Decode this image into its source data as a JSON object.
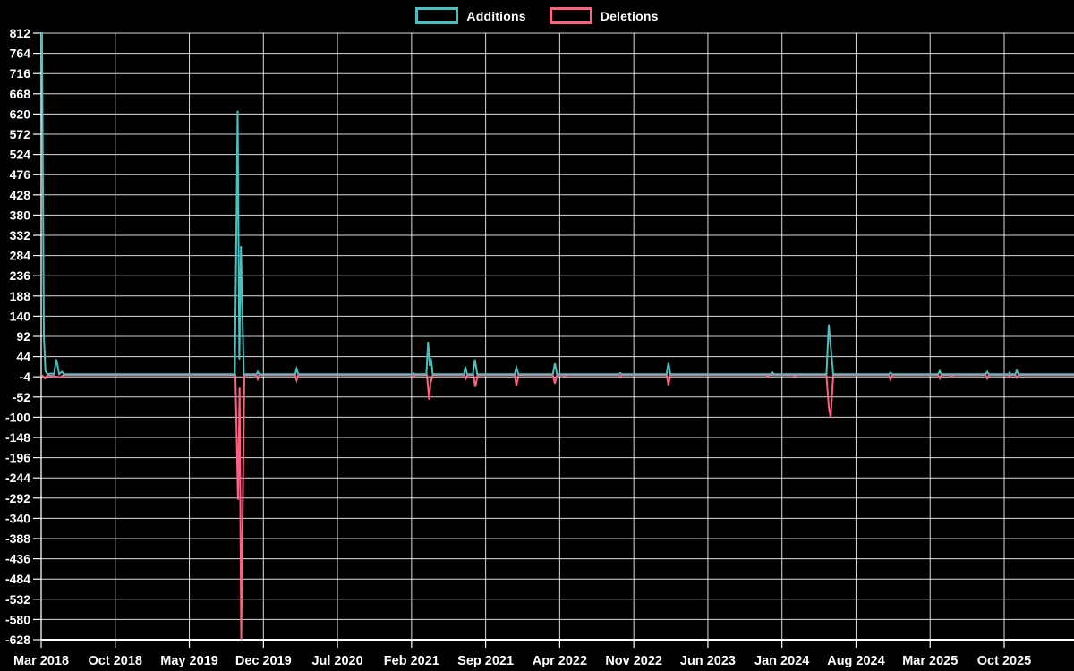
{
  "background": "#000000",
  "legend": {
    "items": [
      {
        "label": "Additions",
        "color": "#4BC0C0"
      },
      {
        "label": "Deletions",
        "color": "#FF6384"
      }
    ]
  },
  "chart_data": {
    "type": "line",
    "title": "",
    "xlabel": "",
    "ylabel": "",
    "grid": true,
    "legend_position": "top-center",
    "x_axis": {
      "unit": "months since Mar 2018",
      "tick_labels": [
        "Mar 2018",
        "Oct 2018",
        "May 2019",
        "Dec 2019",
        "Jul 2020",
        "Feb 2021",
        "Sep 2021",
        "Apr 2022",
        "Nov 2022",
        "Jun 2023",
        "Jan 2024",
        "Aug 2024",
        "Mar 2025",
        "Oct 2025"
      ],
      "tick_month_offsets": [
        0,
        7,
        14,
        21,
        28,
        35,
        42,
        49,
        56,
        63,
        70,
        77,
        84,
        91
      ]
    },
    "y_axis": {
      "min": -628,
      "max": 812,
      "step": 48,
      "ticks": [
        812,
        764,
        716,
        668,
        620,
        572,
        524,
        476,
        428,
        380,
        332,
        284,
        236,
        188,
        140,
        92,
        44,
        -4,
        -52,
        -100,
        -148,
        -196,
        -244,
        -292,
        -340,
        -388,
        -436,
        -484,
        -532,
        -580,
        -628
      ]
    },
    "series": [
      {
        "name": "Additions",
        "color": "#4BC0C0",
        "points": [
          [
            0.08,
            812
          ],
          [
            0.25,
            92
          ],
          [
            0.4,
            8
          ],
          [
            0.6,
            0
          ],
          [
            0.95,
            2
          ],
          [
            1.2,
            0
          ],
          [
            1.44,
            35
          ],
          [
            1.7,
            0
          ],
          [
            1.95,
            6
          ],
          [
            2.2,
            0
          ],
          [
            18.3,
            0
          ],
          [
            18.56,
            626
          ],
          [
            18.72,
            35
          ],
          [
            18.88,
            304
          ],
          [
            19.15,
            0
          ],
          [
            20.35,
            0
          ],
          [
            20.47,
            6
          ],
          [
            20.6,
            0
          ],
          [
            24.0,
            0
          ],
          [
            24.14,
            13
          ],
          [
            24.3,
            0
          ],
          [
            35.1,
            0
          ],
          [
            35.2,
            2
          ],
          [
            35.3,
            0
          ],
          [
            36.4,
            0
          ],
          [
            36.56,
            77
          ],
          [
            36.72,
            20
          ],
          [
            36.82,
            38
          ],
          [
            37.0,
            0
          ],
          [
            39.95,
            0
          ],
          [
            40.09,
            18
          ],
          [
            40.25,
            0
          ],
          [
            40.8,
            0
          ],
          [
            40.98,
            35
          ],
          [
            41.2,
            0
          ],
          [
            44.75,
            0
          ],
          [
            44.91,
            16
          ],
          [
            45.1,
            0
          ],
          [
            48.35,
            0
          ],
          [
            48.54,
            26
          ],
          [
            48.75,
            0
          ],
          [
            54.6,
            0
          ],
          [
            54.72,
            3
          ],
          [
            54.85,
            0
          ],
          [
            59.1,
            0
          ],
          [
            59.28,
            27
          ],
          [
            59.45,
            0
          ],
          [
            68.95,
            0
          ],
          [
            69.1,
            4
          ],
          [
            69.25,
            0
          ],
          [
            74.2,
            0
          ],
          [
            74.42,
            118
          ],
          [
            74.6,
            68
          ],
          [
            74.85,
            0
          ],
          [
            80.1,
            0
          ],
          [
            80.26,
            4
          ],
          [
            80.4,
            0
          ],
          [
            84.75,
            0
          ],
          [
            84.91,
            8
          ],
          [
            85.05,
            0
          ],
          [
            89.25,
            0
          ],
          [
            89.39,
            6
          ],
          [
            89.55,
            0
          ],
          [
            91.4,
            0
          ],
          [
            91.51,
            4
          ],
          [
            91.6,
            0
          ],
          [
            92.05,
            0
          ],
          [
            92.18,
            9
          ],
          [
            92.35,
            0
          ],
          [
            97.6,
            0
          ]
        ]
      },
      {
        "name": "Deletions",
        "color": "#FF6384",
        "points": [
          [
            0.08,
            0
          ],
          [
            0.35,
            -8
          ],
          [
            0.6,
            0
          ],
          [
            1.8,
            -5
          ],
          [
            2.1,
            0
          ],
          [
            18.35,
            0
          ],
          [
            18.6,
            -296
          ],
          [
            18.75,
            -30
          ],
          [
            18.9,
            -628
          ],
          [
            19.2,
            0
          ],
          [
            20.35,
            0
          ],
          [
            20.47,
            -9
          ],
          [
            20.6,
            0
          ],
          [
            24.0,
            0
          ],
          [
            24.14,
            -12
          ],
          [
            24.3,
            0
          ],
          [
            35.1,
            0
          ],
          [
            35.2,
            -4
          ],
          [
            35.3,
            0
          ],
          [
            36.45,
            0
          ],
          [
            36.66,
            -58
          ],
          [
            36.8,
            -18
          ],
          [
            37.0,
            0
          ],
          [
            40.0,
            0
          ],
          [
            40.12,
            -8
          ],
          [
            40.28,
            0
          ],
          [
            40.85,
            0
          ],
          [
            41.02,
            -28
          ],
          [
            41.25,
            0
          ],
          [
            44.75,
            0
          ],
          [
            44.91,
            -26
          ],
          [
            45.1,
            0
          ],
          [
            48.35,
            0
          ],
          [
            48.54,
            -20
          ],
          [
            48.75,
            0
          ],
          [
            49.35,
            0
          ],
          [
            49.47,
            -4
          ],
          [
            49.6,
            0
          ],
          [
            54.6,
            0
          ],
          [
            54.72,
            -4
          ],
          [
            54.85,
            0
          ],
          [
            59.1,
            0
          ],
          [
            59.28,
            -24
          ],
          [
            59.45,
            0
          ],
          [
            68.55,
            0
          ],
          [
            68.67,
            -4
          ],
          [
            68.8,
            0
          ],
          [
            71.1,
            0
          ],
          [
            71.21,
            -4
          ],
          [
            71.35,
            0
          ],
          [
            74.2,
            0
          ],
          [
            74.42,
            -75
          ],
          [
            74.6,
            -101
          ],
          [
            74.85,
            0
          ],
          [
            80.1,
            0
          ],
          [
            80.26,
            -11
          ],
          [
            80.4,
            0
          ],
          [
            84.75,
            0
          ],
          [
            84.91,
            -8
          ],
          [
            85.05,
            0
          ],
          [
            85.9,
            0
          ],
          [
            86.01,
            -4
          ],
          [
            86.15,
            0
          ],
          [
            89.25,
            0
          ],
          [
            89.39,
            -8
          ],
          [
            89.55,
            0
          ],
          [
            91.4,
            0
          ],
          [
            91.51,
            -4
          ],
          [
            91.6,
            0
          ],
          [
            92.05,
            0
          ],
          [
            92.18,
            -6
          ],
          [
            92.35,
            0
          ],
          [
            97.6,
            0
          ]
        ]
      }
    ]
  },
  "colors": {
    "grid": "rgba(255,255,255,0.85)",
    "axis": "#ffffff",
    "tick_text": "#ffffff"
  }
}
